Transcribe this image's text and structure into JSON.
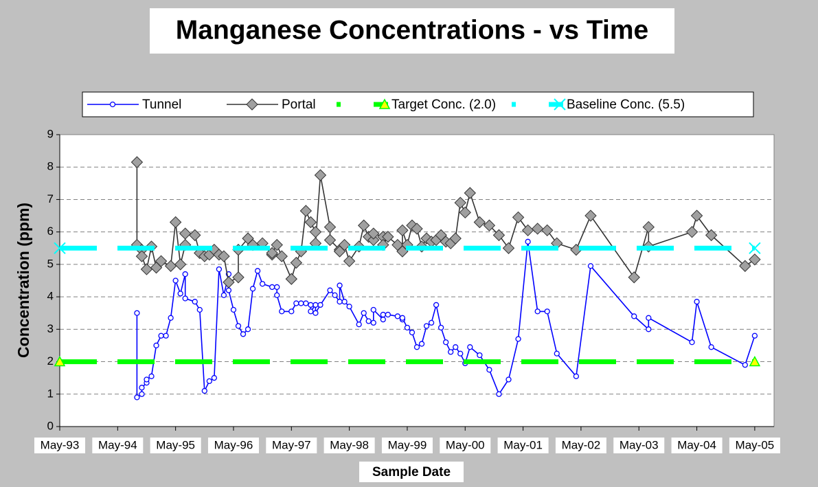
{
  "chart_data": {
    "type": "line",
    "title": "Manganese Concentrations - vs Time",
    "x_label": "Sample Date",
    "y_label": "Concentration (ppm)",
    "xlim": [
      "1993-05",
      "2005-09"
    ],
    "xticks": [
      {
        "value": "1993-05",
        "label": "May-93"
      },
      {
        "value": "1994-05",
        "label": "May-94"
      },
      {
        "value": "1995-05",
        "label": "May-95"
      },
      {
        "value": "1996-05",
        "label": "May-96"
      },
      {
        "value": "1997-05",
        "label": "May-97"
      },
      {
        "value": "1998-05",
        "label": "May-98"
      },
      {
        "value": "1999-05",
        "label": "May-99"
      },
      {
        "value": "2000-05",
        "label": "May-00"
      },
      {
        "value": "2001-05",
        "label": "May-01"
      },
      {
        "value": "2002-05",
        "label": "May-02"
      },
      {
        "value": "2003-05",
        "label": "May-03"
      },
      {
        "value": "2004-05",
        "label": "May-04"
      },
      {
        "value": "2005-05",
        "label": "May-05"
      }
    ],
    "ylim": [
      0,
      9
    ],
    "yticks": [
      0,
      1,
      2,
      3,
      4,
      5,
      6,
      7,
      8,
      9
    ],
    "grid": true,
    "legend": "top",
    "series": [
      {
        "name": "Tunnel",
        "color": "#0000ff",
        "marker": "circle",
        "dashed": false,
        "x": [
          "1994-09",
          "1994-09",
          "1994-10",
          "1994-10",
          "1994-11",
          "1994-11",
          "1994-12",
          "1995-01",
          "1995-02",
          "1995-03",
          "1995-04",
          "1995-05",
          "1995-06",
          "1995-07",
          "1995-07",
          "1995-09",
          "1995-10",
          "1995-11",
          "1995-12",
          "1996-01",
          "1996-02",
          "1996-03",
          "1996-04",
          "1996-04",
          "1996-05",
          "1996-06",
          "1996-07",
          "1996-08",
          "1996-09",
          "1996-10",
          "1996-11",
          "1997-01",
          "1997-02",
          "1997-02",
          "1997-03",
          "1997-05",
          "1997-06",
          "1997-07",
          "1997-08",
          "1997-09",
          "1997-09",
          "1997-10",
          "1997-10",
          "1997-11",
          "1998-01",
          "1998-02",
          "1998-03",
          "1998-03",
          "1998-04",
          "1998-05",
          "1998-07",
          "1998-08",
          "1998-09",
          "1998-10",
          "1998-10",
          "1998-12",
          "1998-12",
          "1999-01",
          "1999-03",
          "1999-04",
          "1999-04",
          "1999-05",
          "1999-06",
          "1999-07",
          "1999-08",
          "1999-09",
          "1999-10",
          "1999-11",
          "1999-12",
          "2000-01",
          "2000-02",
          "2000-03",
          "2000-04",
          "2000-05",
          "2000-06",
          "2000-08",
          "2000-10",
          "2000-12",
          "2001-02",
          "2001-04",
          "2001-06",
          "2001-08",
          "2001-10",
          "2001-12",
          "2002-04",
          "2002-07",
          "2003-04",
          "2003-07",
          "2003-07",
          "2004-04",
          "2004-05",
          "2004-08",
          "2005-03",
          "2005-05"
        ],
        "values": [
          3.5,
          0.9,
          1.0,
          1.2,
          1.35,
          1.45,
          1.55,
          2.5,
          2.8,
          2.8,
          3.35,
          4.5,
          4.1,
          4.7,
          3.95,
          3.85,
          3.6,
          1.1,
          1.4,
          1.5,
          4.85,
          4.05,
          4.7,
          4.2,
          3.6,
          3.1,
          2.85,
          3.0,
          4.25,
          4.8,
          4.4,
          4.3,
          4.3,
          4.05,
          3.55,
          3.55,
          3.8,
          3.8,
          3.8,
          3.75,
          3.55,
          3.75,
          3.5,
          3.75,
          4.2,
          4.05,
          3.85,
          4.35,
          3.85,
          3.7,
          3.15,
          3.5,
          3.25,
          3.2,
          3.6,
          3.3,
          3.45,
          3.45,
          3.4,
          3.3,
          3.35,
          3.05,
          2.9,
          2.45,
          2.55,
          3.1,
          3.2,
          3.75,
          3.05,
          2.6,
          2.3,
          2.45,
          2.25,
          1.95,
          2.45,
          2.2,
          1.75,
          1.0,
          1.45,
          2.7,
          5.7,
          3.55,
          3.55,
          2.25,
          1.55,
          4.95,
          3.4,
          3.0,
          3.35,
          2.6,
          3.85,
          2.45,
          1.9,
          2.8
        ]
      },
      {
        "name": "Portal",
        "color": "#333333",
        "marker": "diamond",
        "dashed": false,
        "x": [
          "1994-09",
          "1994-09",
          "1994-10",
          "1994-10",
          "1994-11",
          "1994-12",
          "1995-01",
          "1995-02",
          "1995-04",
          "1995-05",
          "1995-06",
          "1995-07",
          "1995-07",
          "1995-09",
          "1995-10",
          "1995-11",
          "1995-12",
          "1996-01",
          "1996-02",
          "1996-03",
          "1996-04",
          "1996-06",
          "1996-06",
          "1996-08",
          "1996-09",
          "1996-11",
          "1997-01",
          "1997-01",
          "1997-02",
          "1997-03",
          "1997-05",
          "1997-06",
          "1997-07",
          "1997-08",
          "1997-09",
          "1997-10",
          "1997-10",
          "1997-11",
          "1998-01",
          "1998-01",
          "1998-03",
          "1998-03",
          "1998-04",
          "1998-05",
          "1998-07",
          "1998-08",
          "1998-09",
          "1998-10",
          "1998-10",
          "1998-12",
          "1998-12",
          "1999-01",
          "1999-03",
          "1999-04",
          "1999-04",
          "1999-05",
          "1999-06",
          "1999-07",
          "1999-08",
          "1999-09",
          "1999-10",
          "1999-11",
          "1999-12",
          "2000-01",
          "2000-02",
          "2000-03",
          "2000-04",
          "2000-05",
          "2000-06",
          "2000-08",
          "2000-10",
          "2000-12",
          "2001-02",
          "2001-04",
          "2001-06",
          "2001-08",
          "2001-10",
          "2001-12",
          "2002-04",
          "2002-07",
          "2003-04",
          "2003-07",
          "2003-07",
          "2004-04",
          "2004-05",
          "2004-08",
          "2005-03",
          "2005-05"
        ],
        "values": [
          8.15,
          5.6,
          5.45,
          5.25,
          4.85,
          5.55,
          4.9,
          5.1,
          4.95,
          6.3,
          5.0,
          5.6,
          5.95,
          5.9,
          5.35,
          5.25,
          5.3,
          5.45,
          5.3,
          5.25,
          4.45,
          4.6,
          5.45,
          5.8,
          5.6,
          5.65,
          5.3,
          5.35,
          5.6,
          5.25,
          4.55,
          5.05,
          5.4,
          6.65,
          6.3,
          6.0,
          5.65,
          7.75,
          6.15,
          5.75,
          5.45,
          5.4,
          5.6,
          5.1,
          5.55,
          6.2,
          5.85,
          5.75,
          5.95,
          5.85,
          5.6,
          5.85,
          5.6,
          5.4,
          6.05,
          5.6,
          6.2,
          6.1,
          5.55,
          5.8,
          5.7,
          5.75,
          5.9,
          5.7,
          5.65,
          5.8,
          6.9,
          6.6,
          7.2,
          6.3,
          6.2,
          5.9,
          5.5,
          6.45,
          6.05,
          6.1,
          6.05,
          5.65,
          5.45,
          6.5,
          4.6,
          6.15,
          5.55,
          6.0,
          6.5,
          5.9,
          4.95,
          5.15
        ]
      },
      {
        "name": "Target Conc. (2.0)",
        "color": "#00ff00",
        "marker": "triangle",
        "dashed": true,
        "x": [
          "1993-05",
          "2005-05"
        ],
        "values": [
          2.0,
          2.0
        ]
      },
      {
        "name": "Baseline Conc. (5.5)",
        "color": "#00ffff",
        "marker": "x",
        "dashed": true,
        "x": [
          "1993-05",
          "2005-05"
        ],
        "values": [
          5.5,
          5.5
        ]
      }
    ]
  }
}
